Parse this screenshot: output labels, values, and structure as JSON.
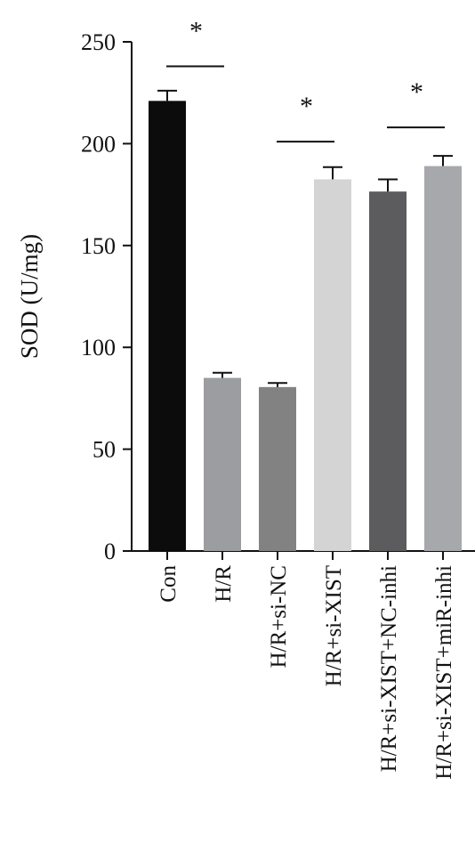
{
  "chart_data": {
    "type": "bar",
    "ylabel": "SOD (U/mg)",
    "xlabel": "",
    "ylim": [
      0,
      250
    ],
    "yticks": [
      0,
      50,
      100,
      150,
      200,
      250
    ],
    "categories": [
      "Con",
      "H/R",
      "H/R+si-NC",
      "H/R+si-XIST",
      "H/R+si-XIST+NC-inhi",
      "H/R+si-XIST+miR-inhi"
    ],
    "values": [
      221,
      85,
      80.5,
      182.5,
      176.5,
      189
    ],
    "errors": [
      5,
      2.5,
      2,
      6,
      6,
      5
    ],
    "colors": [
      "#0c0c0c",
      "#9c9da1",
      "#818281",
      "#d3d4d3",
      "#5c5c5e",
      "#a7a8ab"
    ],
    "significance": [
      {
        "from": 0,
        "to": 1,
        "y": 238,
        "label": "*"
      },
      {
        "from": 2,
        "to": 3,
        "y": 201,
        "label": "*"
      },
      {
        "from": 4,
        "to": 5,
        "y": 208,
        "label": "*"
      }
    ],
    "grid": false,
    "legend": "none"
  }
}
